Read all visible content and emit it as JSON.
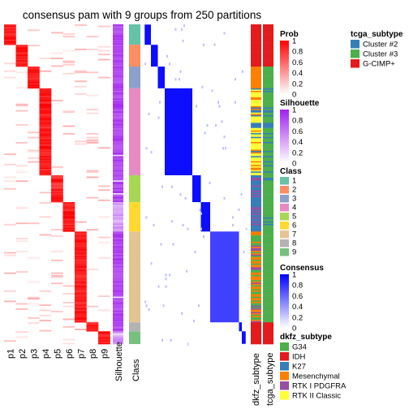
{
  "chart_data": {
    "type": "heatmap",
    "title": "consensus pam with 9 groups from 250 partitions",
    "n_samples": 250,
    "prob_columns": [
      "p1",
      "p2",
      "p3",
      "p4",
      "p5",
      "p6",
      "p7",
      "p8",
      "p9"
    ],
    "annotation_columns": [
      "Silhouette",
      "Class"
    ],
    "right_annotation_columns": [
      "dkfz_subtype",
      "tcga_subtype"
    ],
    "class_blocks": [
      {
        "class": 1,
        "start": 0,
        "end": 16
      },
      {
        "class": 2,
        "start": 16,
        "end": 33
      },
      {
        "class": 3,
        "start": 33,
        "end": 50
      },
      {
        "class": 4,
        "start": 50,
        "end": 118
      },
      {
        "class": 5,
        "start": 118,
        "end": 139
      },
      {
        "class": 6,
        "start": 139,
        "end": 162
      },
      {
        "class": 7,
        "start": 162,
        "end": 233
      },
      {
        "class": 8,
        "start": 233,
        "end": 240
      },
      {
        "class": 9,
        "start": 240,
        "end": 250
      }
    ],
    "class_colors": [
      "#66C2A5",
      "#FC8D62",
      "#8DA0CB",
      "#E78AC3",
      "#A6D854",
      "#FFD92F",
      "#E5C494",
      "#B3B3B3",
      "#78C07E"
    ],
    "legends": {
      "prob": {
        "title": "Prob",
        "ticks": [
          "1",
          "0.8",
          "0.6",
          "0.4",
          "0.2",
          "0"
        ],
        "low": "#FFFFFF",
        "high": "#FF0000"
      },
      "silhouette": {
        "title": "Silhouette",
        "ticks": [
          "1",
          "0.8",
          "0.6",
          "0.4",
          "0.2",
          "0"
        ],
        "low": "#FFFFFF",
        "high": "#A020F0"
      },
      "class": {
        "title": "Class",
        "items": [
          "1",
          "2",
          "3",
          "4",
          "5",
          "6",
          "7",
          "8",
          "9"
        ]
      },
      "consensus": {
        "title": "Consensus",
        "ticks": [
          "1",
          "0.8",
          "0.6",
          "0.4",
          "0.2",
          "0"
        ],
        "low": "#FFFFFF",
        "high": "#0000FF"
      },
      "dkfz_subtype": {
        "title": "dkfz_subtype",
        "items": [
          {
            "label": "G34",
            "color": "#4DAF4A"
          },
          {
            "label": "IDH",
            "color": "#E41A1C"
          },
          {
            "label": "K27",
            "color": "#377EB8"
          },
          {
            "label": "Mesenchymal",
            "color": "#FF7F00"
          },
          {
            "label": "RTK I PDGFRA",
            "color": "#984EA3"
          },
          {
            "label": "RTK II Classic",
            "color": "#FFFF33"
          }
        ]
      },
      "tcga_subtype": {
        "title": "tcga_subtype",
        "items": [
          {
            "label": "Cluster #2",
            "color": "#377EB8"
          },
          {
            "label": "Cluster #3",
            "color": "#4DAF4A"
          },
          {
            "label": "G-CIMP+",
            "color": "#E41A1C"
          }
        ]
      }
    }
  }
}
